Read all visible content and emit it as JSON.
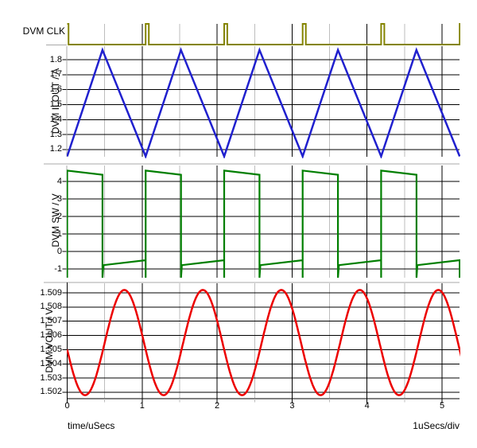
{
  "plots": {
    "clk": {
      "label": "DVM CLK",
      "color": "#848400"
    },
    "ilout": {
      "title": "DVM ILOUT / A",
      "color": "#2020CE",
      "tick_labels": [
        "1.8",
        "1.7",
        "1.6",
        "1.5",
        "1.4",
        "1.3",
        "1.2"
      ]
    },
    "sw": {
      "title": "DVM SW / V",
      "color": "#007F00",
      "tick_labels": [
        "4",
        "3",
        "2",
        "1",
        "0",
        "-1"
      ]
    },
    "vout": {
      "title": "DVM VOUT / V",
      "color": "#EC0000",
      "tick_labels": [
        "1.509",
        "1.508",
        "1.507",
        "1.506",
        "1.505",
        "1.504",
        "1.503",
        "1.502"
      ]
    }
  },
  "x_axis": {
    "tick_labels": [
      "0",
      "1",
      "2",
      "3",
      "4",
      "5"
    ],
    "minor_ticks": [
      0.5,
      1.5,
      2.5,
      3.5,
      4.5
    ],
    "label": "time/uSecs",
    "scale_label": "1uSecs/div"
  },
  "grid": {
    "major_color": "#000000",
    "minor_color": "#bdbdbd",
    "border_color": "#a8a8a8"
  },
  "chart_data": [
    {
      "name": "DVM CLK",
      "type": "line",
      "waveform": "pulse",
      "color": "#848400",
      "x_unit": "uSecs",
      "x_range": [
        0,
        5.23
      ],
      "levels": {
        "low": 0,
        "high": 1
      },
      "first_pulse_fall_us": 0.018,
      "pulse_rise_times_us": [
        1.047,
        2.094,
        3.141,
        4.188,
        5.235
      ],
      "pulse_width_us": 0.042,
      "period_us": 1.047
    },
    {
      "name": "DVM ILOUT",
      "unit": "A",
      "type": "line",
      "waveform": "triangle",
      "color": "#2020CE",
      "x_range": [
        0,
        5.23
      ],
      "period_us": 1.047,
      "min": 1.155,
      "max": 1.865,
      "minima_t_us": [
        0,
        1.047,
        2.094,
        3.141,
        4.188,
        5.235
      ],
      "peaks_t_us": [
        0.471,
        1.518,
        2.565,
        3.612,
        4.659
      ],
      "y_ticks": [
        1.2,
        1.3,
        1.4,
        1.5,
        1.6,
        1.7,
        1.8
      ]
    },
    {
      "name": "DVM SW",
      "unit": "V",
      "type": "line",
      "waveform": "square",
      "color": "#007F00",
      "x_range": [
        0,
        5.23
      ],
      "period_us": 1.047,
      "duty": 0.45,
      "high_level_start": 4.62,
      "high_level_end": 4.38,
      "low_level_start": -0.78,
      "low_level_end": -0.5,
      "switch_dip": -1.5,
      "rise_times_us": [
        0,
        1.047,
        2.094,
        3.141,
        4.188
      ],
      "y_ticks": [
        -1,
        0,
        1,
        2,
        3,
        4
      ]
    },
    {
      "name": "DVM VOUT",
      "unit": "V",
      "type": "line",
      "waveform": "sine",
      "color": "#EC0000",
      "x_range": [
        0,
        5.23
      ],
      "period_us": 1.047,
      "mean": 1.5055,
      "amplitude": 0.0037,
      "phase_rad_at_t0": 1.706,
      "min": 1.5018,
      "max": 1.5092,
      "value_at_t0": 1.505,
      "y_ticks": [
        1.502,
        1.503,
        1.504,
        1.505,
        1.506,
        1.507,
        1.508,
        1.509
      ]
    }
  ]
}
